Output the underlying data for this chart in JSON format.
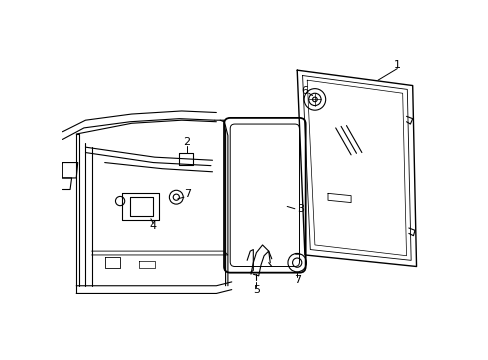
{
  "background_color": "#ffffff",
  "line_color": "#000000",
  "fig_width": 4.89,
  "fig_height": 3.6,
  "dpi": 100,
  "label_fs": 8,
  "lw": 0.8
}
